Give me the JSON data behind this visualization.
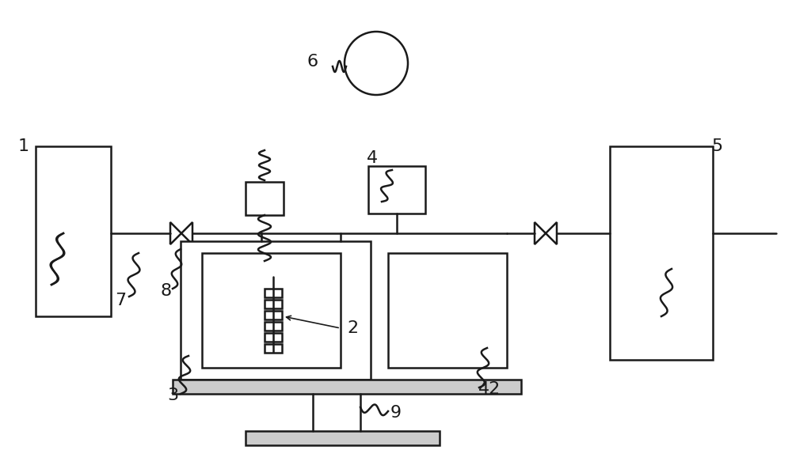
{
  "bg_color": "#ffffff",
  "line_color": "#1a1a1a",
  "line_width": 1.8,
  "fig_width": 10.0,
  "fig_height": 5.88,
  "label_fontsize": 16
}
